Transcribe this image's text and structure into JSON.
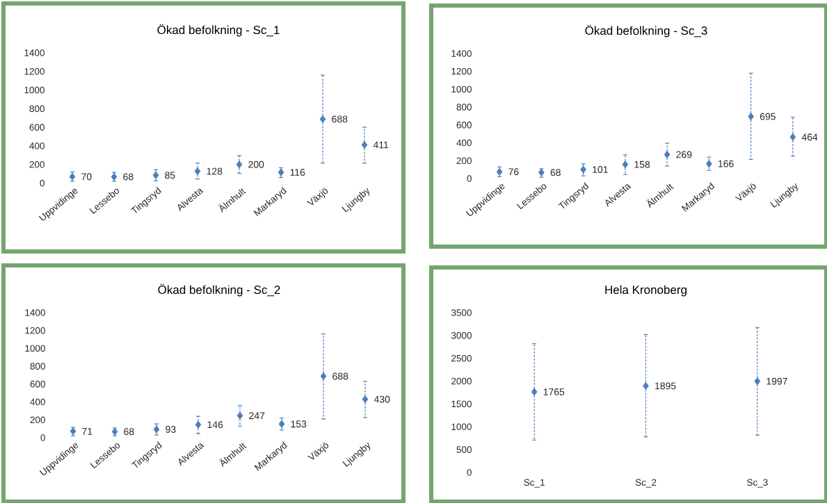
{
  "chart_data": [
    {
      "type": "scatter",
      "title": "Ökad befolkning - Sc_1",
      "categories": [
        "Uppvidinge",
        "Lessebo",
        "Tingsryd",
        "Alvesta",
        "Älmhult",
        "Markaryd",
        "Växjö",
        "Ljungby"
      ],
      "values": [
        70,
        68,
        85,
        128,
        200,
        116,
        688,
        411
      ],
      "errors": [
        [
          20,
          120
        ],
        [
          20,
          115
        ],
        [
          25,
          145
        ],
        [
          45,
          215
        ],
        [
          105,
          295
        ],
        [
          60,
          165
        ],
        [
          215,
          1160
        ],
        [
          215,
          600
        ]
      ],
      "color": "#4a7ebb",
      "marker": "diamond",
      "ylim": [
        0,
        1400
      ],
      "yticks": [
        0,
        200,
        400,
        600,
        800,
        1000,
        1200,
        1400
      ],
      "data_labels": true
    },
    {
      "type": "scatter",
      "title": "Ökad befolkning - Sc_3",
      "categories": [
        "Uppvidinge",
        "Lessebo",
        "Tingsryd",
        "Alvesta",
        "Älmhult",
        "Markaryd",
        "Växjö",
        "Ljungby"
      ],
      "values": [
        76,
        68,
        101,
        158,
        269,
        166,
        695,
        464
      ],
      "errors": [
        [
          20,
          130
        ],
        [
          15,
          110
        ],
        [
          30,
          165
        ],
        [
          45,
          265
        ],
        [
          140,
          395
        ],
        [
          90,
          240
        ],
        [
          215,
          1180
        ],
        [
          250,
          685
        ]
      ],
      "color": "#4a7ebb",
      "marker": "diamond",
      "ylim": [
        0,
        1400
      ],
      "yticks": [
        0,
        200,
        400,
        600,
        800,
        1000,
        1200,
        1400
      ],
      "data_labels": true
    },
    {
      "type": "scatter",
      "title": "Ökad befolkning - Sc_2",
      "categories": [
        "Uppvidinge",
        "Lessebo",
        "Tingsryd",
        "Alvesta",
        "Älmhult",
        "Markaryd",
        "Växjö",
        "Ljungby"
      ],
      "values": [
        71,
        68,
        93,
        146,
        247,
        153,
        688,
        430
      ],
      "errors": [
        [
          20,
          115
        ],
        [
          20,
          110
        ],
        [
          30,
          155
        ],
        [
          45,
          240
        ],
        [
          130,
          360
        ],
        [
          85,
          220
        ],
        [
          210,
          1160
        ],
        [
          225,
          630
        ]
      ],
      "color": "#4a7ebb",
      "marker": "diamond",
      "ylim": [
        0,
        1400
      ],
      "yticks": [
        0,
        200,
        400,
        600,
        800,
        1000,
        1200,
        1400
      ],
      "data_labels": true
    },
    {
      "type": "scatter",
      "title": "Hela Kronoberg",
      "categories": [
        "Sc_1",
        "Sc_2",
        "Sc_3"
      ],
      "values": [
        1765,
        1895,
        1997
      ],
      "errors": [
        [
          710,
          2820
        ],
        [
          780,
          3020
        ],
        [
          815,
          3170
        ]
      ],
      "color": "#4a7ebb",
      "marker": "diamond",
      "ylim": [
        0,
        3500
      ],
      "yticks": [
        0,
        500,
        1000,
        1500,
        2000,
        2500,
        3000,
        3500
      ],
      "data_labels": true
    }
  ]
}
